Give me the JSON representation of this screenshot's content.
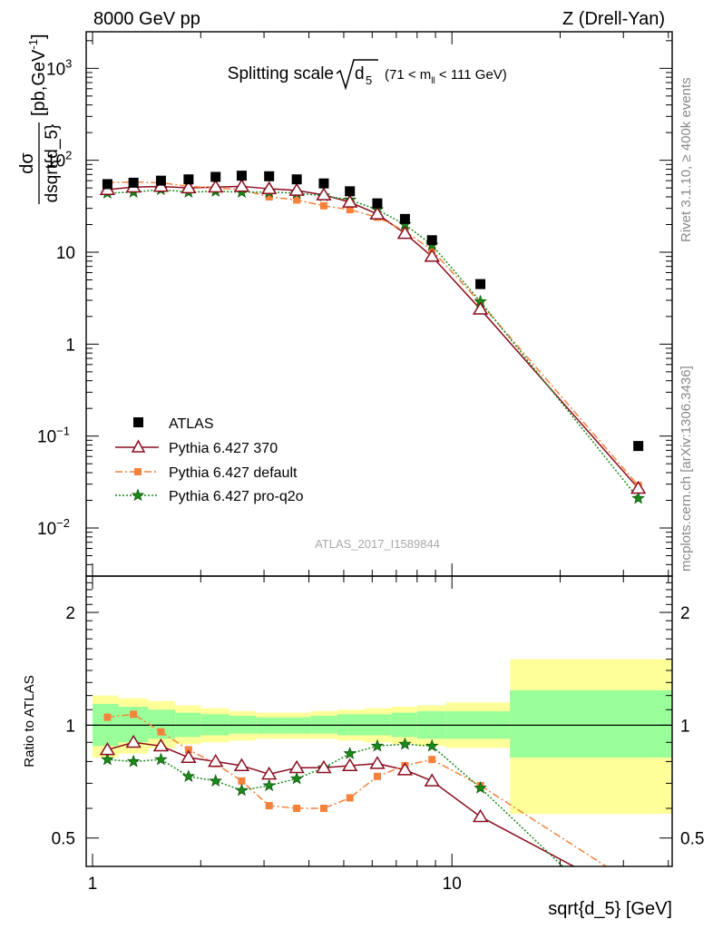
{
  "header": {
    "left": "8000 GeV pp",
    "right": "Z (Drell-Yan)"
  },
  "main_title": {
    "prefix": "Splitting scale",
    "root_var": "d",
    "root_sub": "5",
    "range_pre": "(71 < m",
    "range_sub": "ll",
    "range_post": " < 111 GeV)"
  },
  "side_labels": {
    "rivet": "Rivet 3.1.10, ≥ 400k events",
    "mcplots": "mcplots.cern.ch [arXiv:1306.3436]"
  },
  "watermark": "ATLAS_2017_I1589844",
  "y_label_upper": {
    "numerator": "dσ",
    "denominator": "dsqrt{d_5}",
    "units": "[pb,GeV",
    "units_sup": "-1",
    "units_close": "]"
  },
  "y_label_lower": "Ratio to ATLAS",
  "x_label": "sqrt{d_5} [GeV]",
  "upper_ticks": [
    {
      "base": "10",
      "exp": "3",
      "value": 1000
    },
    {
      "base": "10",
      "exp": "2",
      "value": 100
    },
    {
      "base": "10",
      "exp": "",
      "value": 10
    },
    {
      "base": "1",
      "exp": "",
      "value": 1
    },
    {
      "base": "10",
      "exp": "−1",
      "value": 0.1
    },
    {
      "base": "10",
      "exp": "−2",
      "value": 0.01
    }
  ],
  "ratio_ticks": [
    {
      "label": "2",
      "value": 2
    },
    {
      "label": "1",
      "value": 1
    },
    {
      "label": "0.5",
      "value": 0.5
    }
  ],
  "x_ticks": [
    {
      "label": "1",
      "value": 1
    },
    {
      "label": "10",
      "value": 10
    }
  ],
  "legend": [
    {
      "label": "ATLAS",
      "key": "atlas"
    },
    {
      "label": "Pythia 6.427 370",
      "key": "p370"
    },
    {
      "label": "Pythia 6.427 default",
      "key": "pdef"
    },
    {
      "label": "Pythia 6.427 pro-q2o",
      "key": "pq2o"
    }
  ],
  "colors": {
    "atlas": "#000000",
    "p370": "#8b0d1f",
    "pdef": "#f5813a",
    "pq2o": "#1a8a1a",
    "band_inner": "#99ff99",
    "band_outer": "#ffff99"
  },
  "chart_data": {
    "type": "line",
    "x_scale": "log",
    "xlim": [
      0.96,
      41
    ],
    "upper": {
      "y_scale": "log",
      "ylim": [
        0.003,
        2500
      ],
      "x": [
        1.1,
        1.3,
        1.55,
        1.85,
        2.2,
        2.6,
        3.1,
        3.7,
        4.4,
        5.2,
        6.2,
        7.4,
        8.8,
        12.0,
        33.0
      ],
      "series": [
        {
          "name": "ATLAS",
          "key": "atlas",
          "values": [
            55,
            57,
            60,
            62,
            66,
            68,
            67,
            62,
            56,
            46,
            34,
            23,
            13.5,
            4.5,
            0.078
          ]
        },
        {
          "name": "Pythia 6.427 370",
          "key": "p370",
          "values": [
            48,
            51,
            52,
            50,
            51,
            52,
            49,
            47,
            42,
            35,
            26,
            16,
            9,
            2.4,
            0.027
          ]
        },
        {
          "name": "Pythia 6.427 default",
          "key": "pdef",
          "values": [
            57,
            58,
            57,
            52,
            50,
            48,
            40,
            37,
            32,
            29,
            24,
            17,
            10.5,
            2.8,
            0.029
          ]
        },
        {
          "name": "Pythia 6.427 pro-q2o",
          "key": "pq2o",
          "values": [
            44,
            45,
            48,
            45,
            46,
            45,
            45,
            44,
            41,
            37,
            29,
            20,
            12,
            2.9,
            0.021
          ]
        }
      ]
    },
    "ratio": {
      "y_scale": "log",
      "ylim": [
        0.42,
        2.5
      ],
      "reference": 1,
      "bins": [
        {
          "lo": 1.0,
          "hi": 1.18,
          "inner": [
            0.88,
            1.14
          ],
          "outer": [
            0.82,
            1.2
          ]
        },
        {
          "lo": 1.18,
          "hi": 1.43,
          "inner": [
            0.9,
            1.12
          ],
          "outer": [
            0.84,
            1.18
          ]
        },
        {
          "lo": 1.43,
          "hi": 1.7,
          "inner": [
            0.92,
            1.1
          ],
          "outer": [
            0.87,
            1.16
          ]
        },
        {
          "lo": 1.7,
          "hi": 2.0,
          "inner": [
            0.93,
            1.08
          ],
          "outer": [
            0.89,
            1.13
          ]
        },
        {
          "lo": 2.0,
          "hi": 2.4,
          "inner": [
            0.94,
            1.07
          ],
          "outer": [
            0.9,
            1.11
          ]
        },
        {
          "lo": 2.4,
          "hi": 2.85,
          "inner": [
            0.95,
            1.06
          ],
          "outer": [
            0.91,
            1.09
          ]
        },
        {
          "lo": 2.85,
          "hi": 3.4,
          "inner": [
            0.95,
            1.05
          ],
          "outer": [
            0.92,
            1.08
          ]
        },
        {
          "lo": 3.4,
          "hi": 4.05,
          "inner": [
            0.95,
            1.05
          ],
          "outer": [
            0.92,
            1.08
          ]
        },
        {
          "lo": 4.05,
          "hi": 4.8,
          "inner": [
            0.95,
            1.06
          ],
          "outer": [
            0.92,
            1.09
          ]
        },
        {
          "lo": 4.8,
          "hi": 5.7,
          "inner": [
            0.94,
            1.07
          ],
          "outer": [
            0.91,
            1.1
          ]
        },
        {
          "lo": 5.7,
          "hi": 6.8,
          "inner": [
            0.94,
            1.07
          ],
          "outer": [
            0.9,
            1.11
          ]
        },
        {
          "lo": 6.8,
          "hi": 8.0,
          "inner": [
            0.93,
            1.08
          ],
          "outer": [
            0.89,
            1.12
          ]
        },
        {
          "lo": 8.0,
          "hi": 9.6,
          "inner": [
            0.92,
            1.09
          ],
          "outer": [
            0.88,
            1.13
          ]
        },
        {
          "lo": 9.6,
          "hi": 14.5,
          "inner": [
            0.92,
            1.09
          ],
          "outer": [
            0.87,
            1.15
          ]
        },
        {
          "lo": 14.5,
          "hi": 41,
          "inner": [
            0.82,
            1.24
          ],
          "outer": [
            0.58,
            1.5
          ]
        }
      ],
      "x": [
        1.1,
        1.3,
        1.55,
        1.85,
        2.2,
        2.6,
        3.1,
        3.7,
        4.4,
        5.2,
        6.2,
        7.4,
        8.8,
        12.0,
        33.0
      ],
      "series": [
        {
          "name": "Pythia 6.427 370",
          "key": "p370",
          "values": [
            0.86,
            0.9,
            0.88,
            0.82,
            0.8,
            0.78,
            0.74,
            0.77,
            0.77,
            0.78,
            0.79,
            0.76,
            0.71,
            0.57,
            0.34
          ]
        },
        {
          "name": "Pythia 6.427 default",
          "key": "pdef",
          "values": [
            1.05,
            1.07,
            0.96,
            0.86,
            0.79,
            0.71,
            0.61,
            0.6,
            0.6,
            0.64,
            0.73,
            0.78,
            0.81,
            0.69,
            0.37
          ]
        },
        {
          "name": "Pythia 6.427 pro-q2o",
          "key": "pq2o",
          "values": [
            0.81,
            0.8,
            0.81,
            0.73,
            0.71,
            0.67,
            0.69,
            0.72,
            0.77,
            0.84,
            0.88,
            0.89,
            0.88,
            0.68,
            0.27
          ]
        }
      ]
    }
  }
}
